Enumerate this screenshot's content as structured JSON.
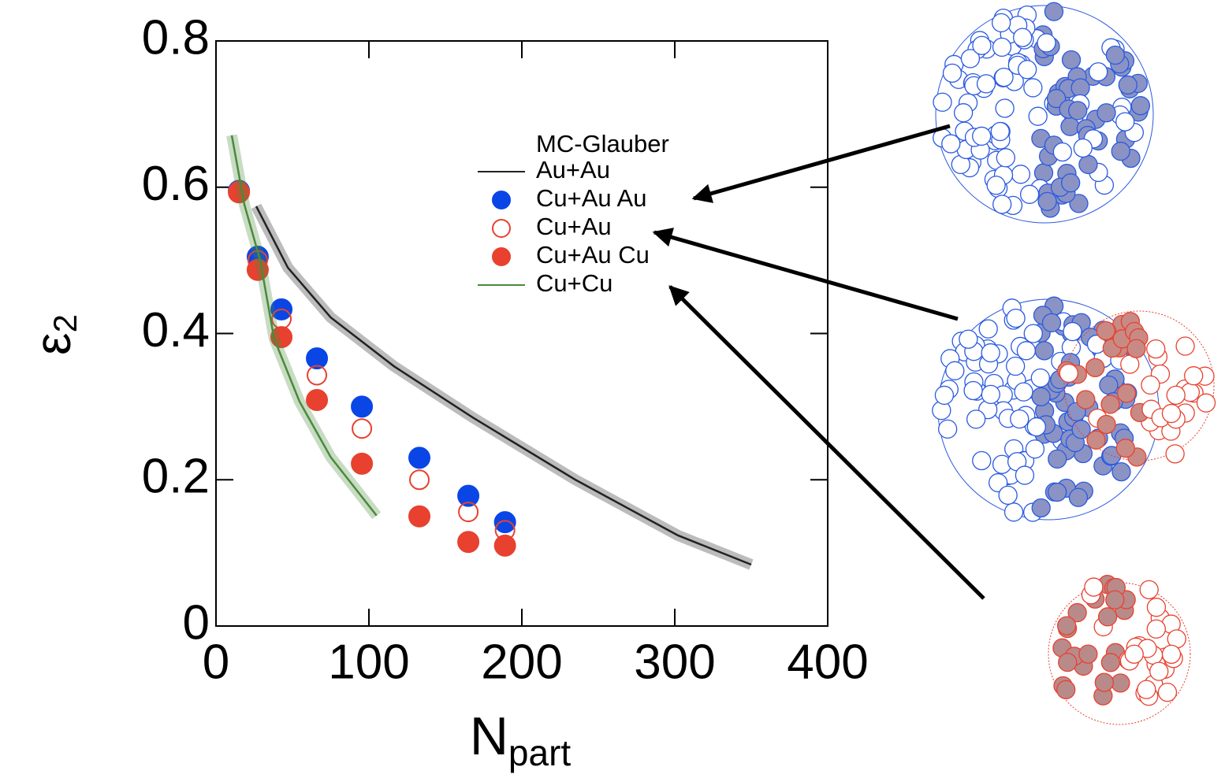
{
  "chart_data": {
    "type": "scatter",
    "xlabel": "N",
    "xlabel_sub": "part",
    "ylabel": "ε",
    "ylabel_sub": "2",
    "legend_title": "MC-Glauber",
    "xlim": [
      0,
      400
    ],
    "xticks": [
      0,
      100,
      200,
      300,
      400
    ],
    "ylim": [
      0,
      0.8
    ],
    "yticks": [
      0,
      0.2,
      0.4,
      0.6,
      0.8
    ],
    "series": [
      {
        "name": "Au+Au",
        "style": "line",
        "color": "#222222",
        "x": [
          26.3,
          47,
          75,
          116.5,
          168,
          235,
          302,
          350
        ],
        "values": [
          0.574,
          0.49,
          0.422,
          0.355,
          0.285,
          0.2,
          0.124,
          0.084
        ]
      },
      {
        "name": "Cu+Au Au",
        "style": "filled",
        "color": "#0a46e6",
        "x": [
          15,
          27.3,
          42.8,
          66,
          95.4,
          133,
          165,
          189
        ],
        "values": [
          0.595,
          0.505,
          0.433,
          0.366,
          0.3,
          0.23,
          0.178,
          0.142
        ]
      },
      {
        "name": "Cu+Au",
        "style": "open",
        "color": "#e8412f",
        "x": [
          15,
          27.3,
          42.8,
          66,
          95.4,
          133,
          165,
          189
        ],
        "values": [
          0.595,
          0.5,
          0.42,
          0.343,
          0.27,
          0.2,
          0.156,
          0.131
        ]
      },
      {
        "name": "Cu+Au Cu",
        "style": "filled",
        "color": "#e8412f",
        "x": [
          15,
          27.3,
          42.8,
          66,
          95.4,
          133,
          165,
          189
        ],
        "values": [
          0.593,
          0.487,
          0.395,
          0.309,
          0.222,
          0.15,
          0.115,
          0.11
        ]
      },
      {
        "name": "Cu+Cu",
        "style": "line",
        "color": "#4a8a3a",
        "x": [
          10.3,
          18.6,
          28.9,
          38,
          54.6,
          75,
          105
        ],
        "values": [
          0.671,
          0.576,
          0.5,
          0.393,
          0.307,
          0.231,
          0.151
        ]
      }
    ]
  }
}
